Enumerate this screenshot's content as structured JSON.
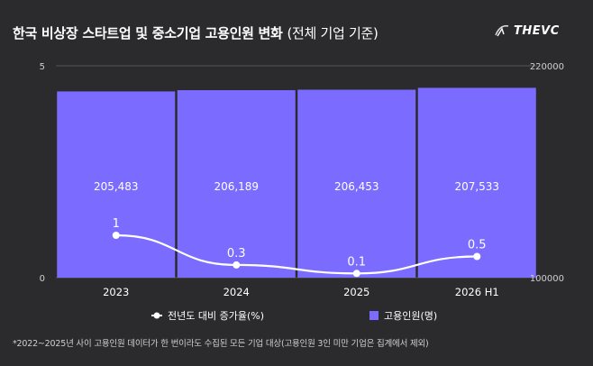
{
  "title": "한국 비상장 스타트업 및 중소기업 고용인원 변화",
  "subtitle": "(전체 기업 기준)",
  "logo_text": "THEVC",
  "footnote": "*2022~2025년 사이 고용인원 데이터가 한 번이라도 수집된 모든 기업 대상(고용인원 3인 미만 기업은 집계에서 제외)",
  "colors": {
    "background": "#2b2b2e",
    "bar": "#7b6cff",
    "line": "#ffffff",
    "grid": "#55555a"
  },
  "chart_data": {
    "type": "bar",
    "categories": [
      "2023",
      "2024",
      "2025",
      "2026 H1"
    ],
    "series": [
      {
        "name": "고용인원(명)",
        "type": "bar",
        "axis": "right",
        "values": [
          205483,
          206189,
          206453,
          207533
        ],
        "labels": [
          "205,483",
          "206,189",
          "206,453",
          "207,533"
        ]
      },
      {
        "name": "전년도 대비 증가율(%)",
        "type": "line",
        "axis": "left",
        "values": [
          1,
          0.3,
          0.1,
          0.5
        ],
        "labels": [
          "1",
          "0.3",
          "0.1",
          "0.5"
        ]
      }
    ],
    "left_axis": {
      "ylim": [
        0,
        5
      ],
      "ticks": [
        "0",
        "5"
      ]
    },
    "right_axis": {
      "ylim": [
        100000,
        220000
      ],
      "ticks": [
        "100000",
        "220000"
      ]
    },
    "legend": {
      "placement": "bottom-center"
    },
    "grid": true
  }
}
